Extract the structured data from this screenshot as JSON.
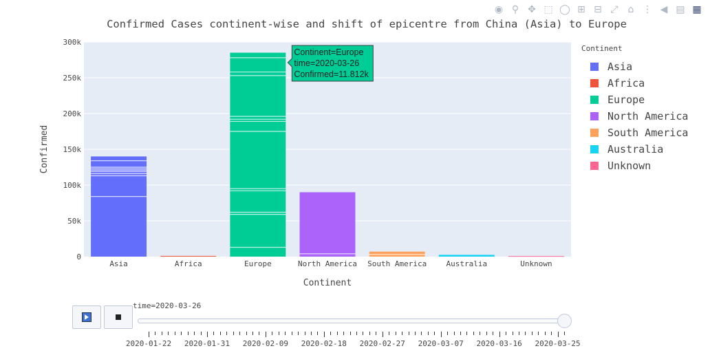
{
  "modebar": {
    "buttons": [
      "camera-icon",
      "zoom-icon",
      "pan-icon",
      "box-select-icon",
      "lasso-icon",
      "zoom-in-icon",
      "zoom-out-icon",
      "autoscale-icon",
      "reset-axes-icon",
      "spike-lines-icon",
      "hover-closest-icon",
      "hover-compare-icon",
      "plotly-logo-icon"
    ]
  },
  "chart_data": {
    "type": "bar",
    "title": "Confirmed Cases continent-wise and shift of epicentre from China (Asia) to Europe",
    "xlabel": "Continent",
    "ylabel": "Confirmed",
    "categories": [
      "Asia",
      "Africa",
      "Europe",
      "North America",
      "South America",
      "Australia",
      "Unknown"
    ],
    "values": [
      140000,
      1000,
      285000,
      90000,
      7000,
      2500,
      800
    ],
    "ylim": [
      0,
      300000
    ],
    "yticks": [
      0,
      50000,
      100000,
      150000,
      200000,
      250000,
      300000
    ],
    "ytick_labels": [
      "0",
      "50k",
      "100k",
      "150k",
      "200k",
      "250k",
      "300k"
    ],
    "grid": true,
    "legend_position": "right",
    "legend_title": "Continent",
    "colors": [
      "#636efa",
      "#ef553b",
      "#00cc96",
      "#ab63fa",
      "#ffa15a",
      "#19d3f3",
      "#ff6692"
    ],
    "segment_breaks": [
      [
        84000,
        113000,
        116000,
        119000,
        121000,
        123000,
        125000,
        134000
      ],
      [],
      [
        13000,
        59000,
        62000,
        92000,
        95000,
        175000,
        189000,
        192000,
        196000,
        253000,
        258000,
        278000
      ],
      [
        4000
      ],
      [
        3000
      ],
      [],
      []
    ],
    "tooltip": {
      "category": "Europe",
      "lines": [
        "Continent=Europe",
        "time=2020-03-26",
        "Confirmed=11.812k"
      ]
    }
  },
  "animation": {
    "current_label": "time=2020-03-26",
    "dates": [
      "2020-01-22",
      "2020-01-31",
      "2020-02-09",
      "2020-02-18",
      "2020-02-27",
      "2020-03-07",
      "2020-03-16",
      "2020-03-25"
    ],
    "frame_count": 65,
    "current_fraction": 1.0
  }
}
